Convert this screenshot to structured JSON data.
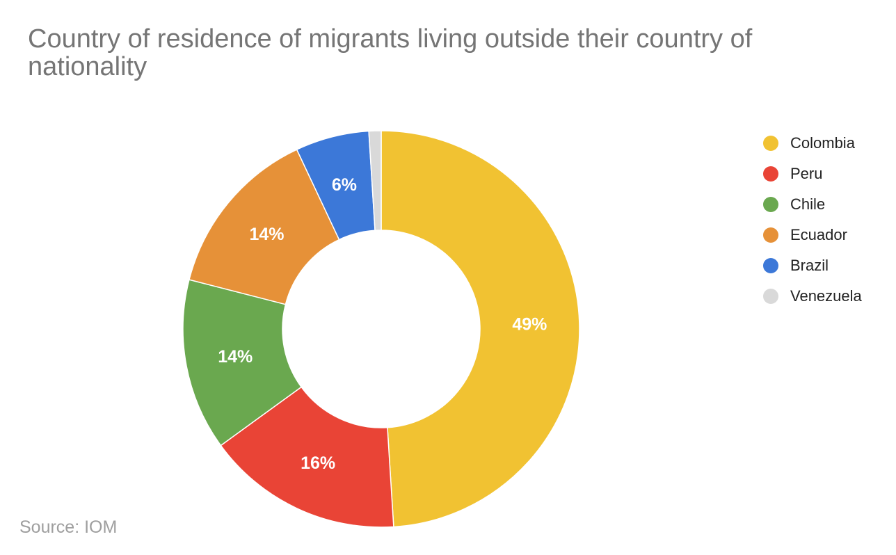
{
  "chart_data": {
    "type": "pie",
    "title": "Country of residence of migrants living outside their country of nationality",
    "legend_position": "right",
    "donut": true,
    "slices": [
      {
        "label": "Colombia",
        "value": 49,
        "value_label": "49%",
        "color": "#f1c232"
      },
      {
        "label": "Peru",
        "value": 16,
        "value_label": "16%",
        "color": "#e94436"
      },
      {
        "label": "Chile",
        "value": 14,
        "value_label": "14%",
        "color": "#6aa84f"
      },
      {
        "label": "Ecuador",
        "value": 14,
        "value_label": "14%",
        "color": "#e69138"
      },
      {
        "label": "Brazil",
        "value": 6,
        "value_label": "6%",
        "color": "#3c78d8"
      },
      {
        "label": "Venezuela",
        "value": 1,
        "value_label": "",
        "color": "#d9d9d9"
      }
    ]
  },
  "footer": {
    "source": "Source: IOM"
  }
}
